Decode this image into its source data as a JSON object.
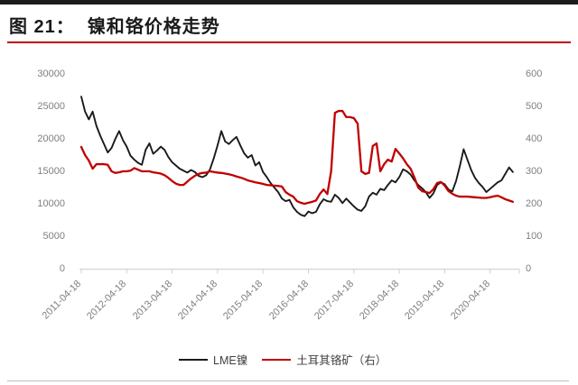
{
  "header": {
    "figure_label": "图 21：",
    "title": "镍和铬价格走势"
  },
  "colors": {
    "accent_rule": "#c00000",
    "nickel_line": "#1a1a1a",
    "chrome_line": "#c00000",
    "axis_text": "#7f7f7f",
    "axis_line": "#cfcfcf"
  },
  "chart_data": {
    "type": "line",
    "title": "镍和铬价格走势",
    "grid": false,
    "legend_position": "bottom",
    "x_start": "2011-04",
    "x_frequency": "monthly",
    "x_tick_labels": [
      "2011-04-18",
      "2012-04-18",
      "2013-04-18",
      "2014-04-18",
      "2015-04-18",
      "2016-04-18",
      "2017-04-18",
      "2018-04-18",
      "2019-04-18",
      "2020-04-18"
    ],
    "left_axis": {
      "min": 0,
      "max": 30000,
      "step": 5000,
      "tick_labels": [
        "0",
        "5000",
        "10000",
        "15000",
        "20000",
        "25000",
        "30000"
      ]
    },
    "right_axis": {
      "min": 0,
      "max": 600,
      "step": 100,
      "tick_labels": [
        "0",
        "100",
        "200",
        "300",
        "400",
        "500",
        "600"
      ]
    },
    "series": [
      {
        "name": "LME镍",
        "axis": "left",
        "color": "#1a1a1a",
        "line_width": 1.9,
        "values": [
          26500,
          24200,
          23000,
          24200,
          22000,
          20500,
          19200,
          17900,
          18600,
          20000,
          21200,
          19800,
          18800,
          17400,
          16800,
          16300,
          16000,
          18300,
          19300,
          17700,
          18200,
          18800,
          18300,
          17200,
          16400,
          15900,
          15400,
          15100,
          14800,
          15200,
          14900,
          14300,
          14100,
          14400,
          15300,
          17000,
          19000,
          21200,
          19600,
          19200,
          19800,
          20300,
          19000,
          17800,
          17100,
          17500,
          15900,
          16400,
          14900,
          14100,
          13200,
          12500,
          11800,
          10800,
          10400,
          10600,
          9450,
          8750,
          8300,
          8100,
          8800,
          8550,
          8750,
          9900,
          10700,
          10400,
          10300,
          11400,
          10900,
          10100,
          10800,
          10200,
          9600,
          9100,
          8900,
          9600,
          11100,
          11700,
          11400,
          12300,
          12100,
          12900,
          13600,
          13300,
          14100,
          15300,
          15000,
          14500,
          13600,
          12900,
          12400,
          11800,
          10900,
          11600,
          12900,
          13300,
          13000,
          12200,
          11900,
          13500,
          15800,
          18400,
          16800,
          15200,
          14000,
          13200,
          12600,
          11800,
          12300,
          12800,
          13300,
          13600,
          14600,
          15600,
          14900
        ]
      },
      {
        "name": "土耳其铬矿（右）",
        "axis": "right",
        "color": "#c00000",
        "line_width": 2.3,
        "values": [
          375,
          350,
          333,
          308,
          322,
          322,
          322,
          320,
          300,
          295,
          297,
          300,
          300,
          302,
          310,
          305,
          300,
          300,
          300,
          297,
          295,
          293,
          288,
          280,
          270,
          262,
          258,
          258,
          268,
          278,
          286,
          292,
          295,
          296,
          300,
          298,
          296,
          295,
          293,
          291,
          288,
          284,
          281,
          277,
          272,
          269,
          266,
          264,
          261,
          258,
          257,
          256,
          255,
          253,
          236,
          228,
          222,
          208,
          203,
          200,
          203,
          206,
          210,
          230,
          244,
          230,
          300,
          480,
          486,
          486,
          467,
          467,
          464,
          447,
          300,
          292,
          295,
          378,
          386,
          300,
          322,
          336,
          330,
          369,
          355,
          340,
          322,
          308,
          281,
          250,
          239,
          236,
          233,
          245,
          264,
          267,
          256,
          239,
          231,
          225,
          222,
          222,
          222,
          221,
          220,
          219,
          218,
          218,
          220,
          223,
          225,
          220,
          214,
          210,
          206
        ]
      }
    ]
  },
  "legend": {
    "items": [
      {
        "label": "LME镍",
        "color": "#1a1a1a",
        "thickness": 2
      },
      {
        "label": "土耳其铬矿（右）",
        "color": "#c00000",
        "thickness": 2.5
      }
    ]
  }
}
